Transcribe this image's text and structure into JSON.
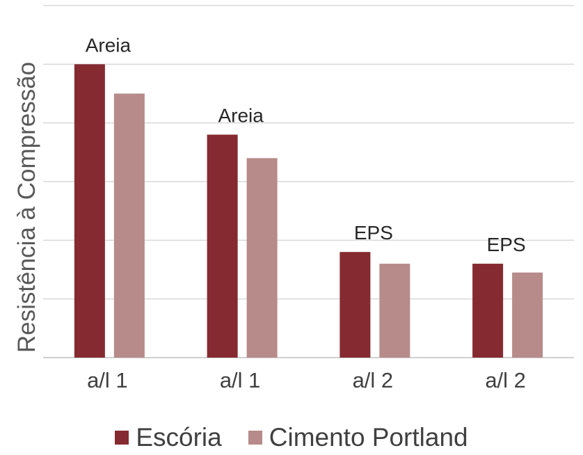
{
  "chart_data": {
    "type": "bar",
    "categories": [
      "a/l 1",
      "a/l 1",
      "a/l 2",
      "a/l 2"
    ],
    "annotations": [
      "Areia",
      "Areia",
      "EPS",
      "EPS"
    ],
    "series": [
      {
        "name": "Escória",
        "color": "#852a30",
        "values": [
          5.0,
          3.8,
          1.8,
          1.6
        ]
      },
      {
        "name": "Cimento Portland",
        "color": "#b68b89",
        "values": [
          4.5,
          3.4,
          1.6,
          1.45
        ]
      }
    ],
    "title": "",
    "xlabel": "",
    "ylabel": "Resistência à Compressão",
    "ylim": [
      0,
      6
    ],
    "grid": true,
    "legend": "bottom"
  }
}
